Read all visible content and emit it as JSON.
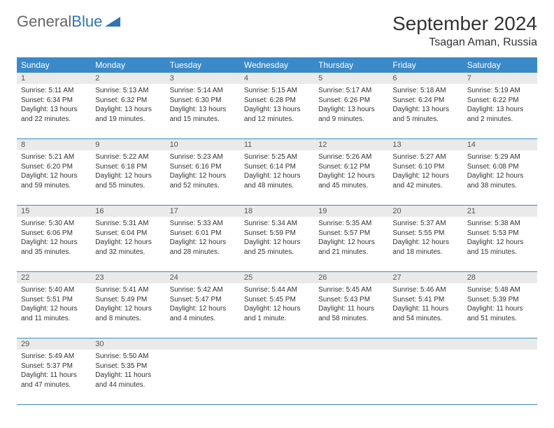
{
  "logo": {
    "general": "General",
    "blue": "Blue"
  },
  "title": "September 2024",
  "location": "Tsagan Aman, Russia",
  "colors": {
    "header_bg": "#3a8ac9",
    "daynum_bg": "#eaeaea",
    "border": "#3a8ac9",
    "logo_blue": "#2f75b5"
  },
  "weekdays": [
    "Sunday",
    "Monday",
    "Tuesday",
    "Wednesday",
    "Thursday",
    "Friday",
    "Saturday"
  ],
  "weeks": [
    [
      {
        "n": "1",
        "sr": "5:11 AM",
        "ss": "6:34 PM",
        "dl": "13 hours and 22 minutes."
      },
      {
        "n": "2",
        "sr": "5:13 AM",
        "ss": "6:32 PM",
        "dl": "13 hours and 19 minutes."
      },
      {
        "n": "3",
        "sr": "5:14 AM",
        "ss": "6:30 PM",
        "dl": "13 hours and 15 minutes."
      },
      {
        "n": "4",
        "sr": "5:15 AM",
        "ss": "6:28 PM",
        "dl": "13 hours and 12 minutes."
      },
      {
        "n": "5",
        "sr": "5:17 AM",
        "ss": "6:26 PM",
        "dl": "13 hours and 9 minutes."
      },
      {
        "n": "6",
        "sr": "5:18 AM",
        "ss": "6:24 PM",
        "dl": "13 hours and 5 minutes."
      },
      {
        "n": "7",
        "sr": "5:19 AM",
        "ss": "6:22 PM",
        "dl": "13 hours and 2 minutes."
      }
    ],
    [
      {
        "n": "8",
        "sr": "5:21 AM",
        "ss": "6:20 PM",
        "dl": "12 hours and 59 minutes."
      },
      {
        "n": "9",
        "sr": "5:22 AM",
        "ss": "6:18 PM",
        "dl": "12 hours and 55 minutes."
      },
      {
        "n": "10",
        "sr": "5:23 AM",
        "ss": "6:16 PM",
        "dl": "12 hours and 52 minutes."
      },
      {
        "n": "11",
        "sr": "5:25 AM",
        "ss": "6:14 PM",
        "dl": "12 hours and 48 minutes."
      },
      {
        "n": "12",
        "sr": "5:26 AM",
        "ss": "6:12 PM",
        "dl": "12 hours and 45 minutes."
      },
      {
        "n": "13",
        "sr": "5:27 AM",
        "ss": "6:10 PM",
        "dl": "12 hours and 42 minutes."
      },
      {
        "n": "14",
        "sr": "5:29 AM",
        "ss": "6:08 PM",
        "dl": "12 hours and 38 minutes."
      }
    ],
    [
      {
        "n": "15",
        "sr": "5:30 AM",
        "ss": "6:06 PM",
        "dl": "12 hours and 35 minutes."
      },
      {
        "n": "16",
        "sr": "5:31 AM",
        "ss": "6:04 PM",
        "dl": "12 hours and 32 minutes."
      },
      {
        "n": "17",
        "sr": "5:33 AM",
        "ss": "6:01 PM",
        "dl": "12 hours and 28 minutes."
      },
      {
        "n": "18",
        "sr": "5:34 AM",
        "ss": "5:59 PM",
        "dl": "12 hours and 25 minutes."
      },
      {
        "n": "19",
        "sr": "5:35 AM",
        "ss": "5:57 PM",
        "dl": "12 hours and 21 minutes."
      },
      {
        "n": "20",
        "sr": "5:37 AM",
        "ss": "5:55 PM",
        "dl": "12 hours and 18 minutes."
      },
      {
        "n": "21",
        "sr": "5:38 AM",
        "ss": "5:53 PM",
        "dl": "12 hours and 15 minutes."
      }
    ],
    [
      {
        "n": "22",
        "sr": "5:40 AM",
        "ss": "5:51 PM",
        "dl": "12 hours and 11 minutes."
      },
      {
        "n": "23",
        "sr": "5:41 AM",
        "ss": "5:49 PM",
        "dl": "12 hours and 8 minutes."
      },
      {
        "n": "24",
        "sr": "5:42 AM",
        "ss": "5:47 PM",
        "dl": "12 hours and 4 minutes."
      },
      {
        "n": "25",
        "sr": "5:44 AM",
        "ss": "5:45 PM",
        "dl": "12 hours and 1 minute."
      },
      {
        "n": "26",
        "sr": "5:45 AM",
        "ss": "5:43 PM",
        "dl": "11 hours and 58 minutes."
      },
      {
        "n": "27",
        "sr": "5:46 AM",
        "ss": "5:41 PM",
        "dl": "11 hours and 54 minutes."
      },
      {
        "n": "28",
        "sr": "5:48 AM",
        "ss": "5:39 PM",
        "dl": "11 hours and 51 minutes."
      }
    ],
    [
      {
        "n": "29",
        "sr": "5:49 AM",
        "ss": "5:37 PM",
        "dl": "11 hours and 47 minutes."
      },
      {
        "n": "30",
        "sr": "5:50 AM",
        "ss": "5:35 PM",
        "dl": "11 hours and 44 minutes."
      },
      null,
      null,
      null,
      null,
      null
    ]
  ],
  "labels": {
    "sunrise": "Sunrise: ",
    "sunset": "Sunset: ",
    "daylight": "Daylight: "
  }
}
